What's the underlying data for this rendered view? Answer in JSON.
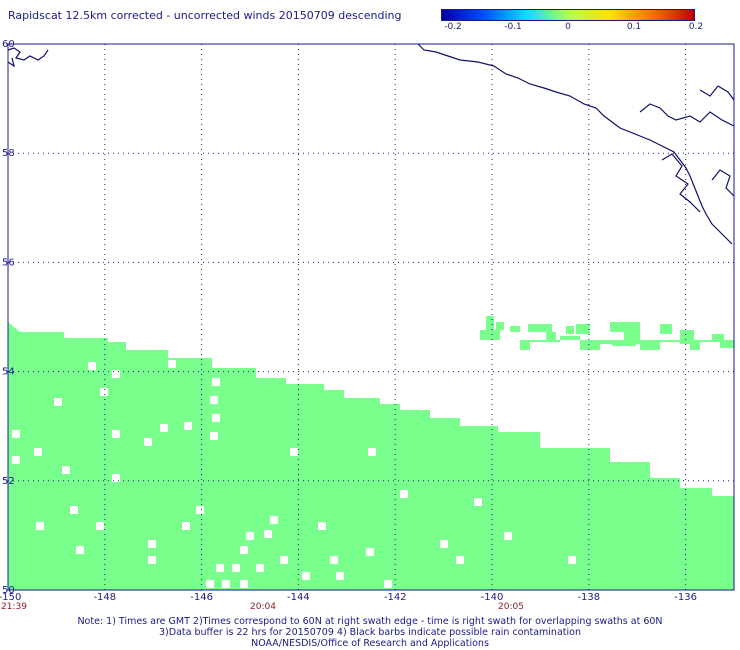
{
  "title": "Rapidscat 12.5km corrected - uncorrected winds 20150709 descending",
  "colorbar": {
    "labels": [
      "-0.2",
      "-0.1",
      "0",
      "0.1",
      "0.2"
    ],
    "colors": [
      "#0000a0",
      "#0050ff",
      "#00e0ff",
      "#b0ff50",
      "#ffe000",
      "#ff7000",
      "#c00000"
    ]
  },
  "map": {
    "lon_range": [
      -150,
      -135
    ],
    "lat_range": [
      50,
      60
    ],
    "lon_ticks": [
      "-148",
      "-146",
      "-144",
      "-142",
      "-140",
      "-138",
      "-136"
    ],
    "lat_ticks": [
      "60",
      "58",
      "56",
      "54",
      "52",
      "50"
    ],
    "corner_lon_label": "-150",
    "time_labels": [
      "21:39",
      "20:04",
      "20:05"
    ],
    "swath_color": "#78ff8c",
    "coast_color": "#10106e"
  },
  "notes": [
    "Note: 1) Times are GMT 2)Times correspond to 60N at right swath edge - time is right swath for overlapping swaths at 60N",
    "3)Data buffer is 22 hrs for 20150709 4) Black barbs indicate possible rain contamination",
    "NOAA/NESDIS/Office of Research and Applications"
  ]
}
